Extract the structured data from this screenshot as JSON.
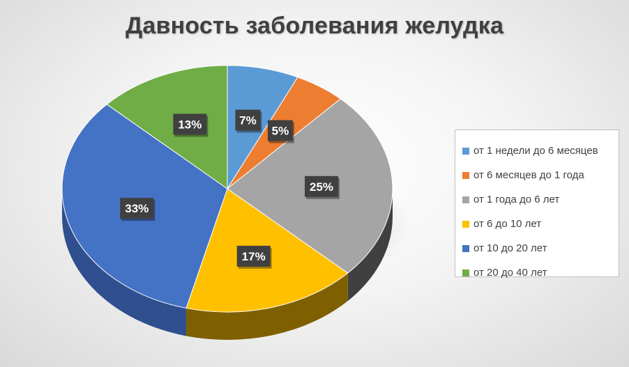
{
  "chart_data": {
    "type": "pie",
    "title": "Давность заболевания желудка",
    "legend_position": "right",
    "slices": [
      {
        "label": "от 1 недели до 6 месяцев",
        "value": 7,
        "display": "7%",
        "color": "#5B9BD5",
        "side": "#3F77AC"
      },
      {
        "label": "от 6 месяцев до 1 года",
        "value": 5,
        "display": "5%",
        "color": "#ED7D31",
        "side": "#B55A1D"
      },
      {
        "label": "от 1 года до 6 лет",
        "value": 25,
        "display": "25%",
        "color": "#A5A5A5",
        "side": "#404040"
      },
      {
        "label": "от 6 до 10 лет",
        "value": 17,
        "display": "17%",
        "color": "#FFC000",
        "side": "#7F6000"
      },
      {
        "label": "от 10 до 20 лет",
        "value": 33,
        "display": "33%",
        "color": "#4472C4",
        "side": "#2F4F8F"
      },
      {
        "label": "от 20 до 40 лет",
        "value": 13,
        "display": "13%",
        "color": "#70AD47",
        "side": "#4E7B31"
      }
    ]
  }
}
